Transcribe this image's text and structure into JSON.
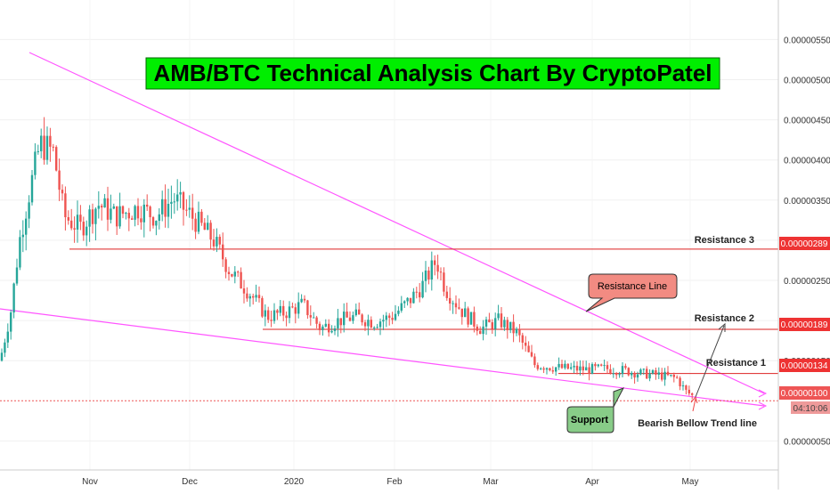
{
  "chart_data": {
    "type": "candlestick",
    "title": "AMB/BTC Technical Analysis Chart By CryptoPatel",
    "colors": {
      "bull": "#26a69a",
      "bear": "#ef5350",
      "trendline": "#ff55ff",
      "level": "#dd2222",
      "title_bg": "#00ee00",
      "callout_red": "#f28b82",
      "callout_green": "#88cc88"
    },
    "ylim": [
      2e-08,
      6e-07
    ],
    "y_ticks": [
      "0.00000050",
      "0.00000150",
      "0.00000200",
      "0.00000250",
      "0.00000300",
      "0.00000350",
      "0.00000400",
      "0.00000450",
      "0.00000500",
      "0.00000550"
    ],
    "x_ticks": [
      "Nov",
      "Dec",
      "2020",
      "Feb",
      "Mar",
      "Apr",
      "May"
    ],
    "levels": [
      {
        "name": "Resistance 3",
        "value": 2.89e-06,
        "label": "0.00000289"
      },
      {
        "name": "Resistance 2",
        "value": 1.89e-06,
        "label": "0.00000189"
      },
      {
        "name": "Resistance 1",
        "value": 1.34e-06,
        "label": "0.00000134"
      }
    ],
    "current_price": {
      "label": "0.00000100",
      "value": 1e-06,
      "countdown": "04:10:06"
    },
    "annotations": {
      "resistance_line": "Resistance Line",
      "support": "Support",
      "bearish": "Bearish Bellow Trend line"
    },
    "candles": [
      [
        2e-06,
        2e-06,
        1e-06,
        2e-06
      ],
      [
        2e-06,
        2e-06,
        2e-06,
        2e-06
      ],
      [
        2e-06,
        3e-06,
        2e-06,
        3e-06
      ],
      [
        3e-06,
        3e-06,
        3e-06,
        3e-06
      ],
      [
        3e-06,
        4e-06,
        2e-06,
        4e-06
      ],
      [
        4e-06,
        4e-06,
        3e-06,
        3e-06
      ],
      [
        3e-06,
        4e-06,
        3e-06,
        4e-06
      ],
      [
        4e-06,
        5e-06,
        4e-06,
        4e-06
      ],
      [
        4e-06,
        5e-06,
        4e-06,
        4e-06
      ],
      [
        4e-06,
        4e-06,
        4e-06,
        4e-06
      ],
      [
        4e-06,
        5e-06,
        4e-06,
        4e-06
      ],
      [
        4e-06,
        5e-06,
        4e-06,
        4e-06
      ],
      [
        4e-06,
        4e-06,
        4e-06,
        4e-06
      ],
      [
        4e-06,
        4e-06,
        3e-06,
        3e-06
      ],
      [
        3e-06,
        4e-06,
        3e-06,
        3e-06
      ],
      [
        3e-06,
        3e-06,
        3e-06,
        3e-06
      ],
      [
        3e-06,
        3e-06,
        3e-06,
        3e-06
      ],
      [
        3e-06,
        4e-06,
        3e-06,
        3e-06
      ],
      [
        3e-06,
        4e-06,
        3e-06,
        3e-06
      ],
      [
        3e-06,
        3e-06,
        3e-06,
        3e-06
      ],
      [
        3e-06,
        3e-06,
        3e-06,
        3e-06
      ],
      [
        3e-06,
        3e-06,
        3e-06,
        3e-06
      ],
      [
        3e-06,
        4e-06,
        3e-06,
        3e-06
      ],
      [
        3e-06,
        3e-06,
        3e-06,
        3e-06
      ],
      [
        3e-06,
        3e-06,
        3e-06,
        3e-06
      ],
      [
        3e-06,
        3e-06,
        3e-06,
        3e-06
      ],
      [
        3e-06,
        3e-06,
        3e-06,
        3e-06
      ],
      [
        3e-06,
        3e-06,
        3e-06,
        3e-06
      ],
      [
        3e-06,
        3e-06,
        3e-06,
        3e-06
      ],
      [
        3e-06,
        3e-06,
        3e-06,
        3e-06
      ],
      [
        3e-06,
        3e-06,
        3e-06,
        3e-06
      ],
      [
        3e-06,
        3e-06,
        3e-06,
        3e-06
      ],
      [
        3e-06,
        3e-06,
        3e-06,
        3e-06
      ],
      [
        3e-06,
        3e-06,
        3e-06,
        3e-06
      ],
      [
        3e-06,
        3e-06,
        3e-06,
        3e-06
      ],
      [
        3e-06,
        3e-06,
        3e-06,
        3e-06
      ],
      [
        3e-06,
        3e-06,
        3e-06,
        3e-06
      ],
      [
        3e-06,
        3e-06,
        3e-06,
        3e-06
      ],
      [
        3e-06,
        3e-06,
        3e-06,
        3e-06
      ],
      [
        3e-06,
        3e-06,
        3e-06,
        3e-06
      ],
      [
        3e-06,
        3e-06,
        3e-06,
        3e-06
      ],
      [
        3e-06,
        3e-06,
        3e-06,
        3e-06
      ],
      [
        3e-06,
        3e-06,
        2e-06,
        2e-06
      ],
      [
        2e-06,
        3e-06,
        2e-06,
        2e-06
      ],
      [
        2e-06,
        3e-06,
        2e-06,
        2e-06
      ],
      [
        2e-06,
        2e-06,
        2e-06,
        2e-06
      ],
      [
        2e-06,
        2e-06,
        2e-06,
        2e-06
      ],
      [
        2e-06,
        2e-06,
        2e-06,
        2e-06
      ],
      [
        2e-06,
        2e-06,
        2e-06,
        2e-06
      ],
      [
        2e-06,
        2e-06,
        2e-06,
        2e-06
      ],
      [
        2e-06,
        2e-06,
        2e-06,
        2e-06
      ],
      [
        2e-06,
        2e-06,
        2e-06,
        2e-06
      ],
      [
        2e-06,
        2e-06,
        2e-06,
        2e-06
      ],
      [
        2e-06,
        2e-06,
        2e-06,
        2e-06
      ],
      [
        2e-06,
        2e-06,
        2e-06,
        2e-06
      ],
      [
        2e-06,
        2e-06,
        2e-06,
        2e-06
      ],
      [
        2e-06,
        2e-06,
        2e-06,
        2e-06
      ],
      [
        2e-06,
        2e-06,
        2e-06,
        2e-06
      ],
      [
        2e-06,
        2e-06,
        2e-06,
        2e-06
      ],
      [
        2e-06,
        2e-06,
        2e-06,
        2e-06
      ],
      [
        2e-06,
        2e-06,
        2e-06,
        2e-06
      ],
      [
        2e-06,
        2e-06,
        2e-06,
        2e-06
      ],
      [
        2e-06,
        2e-06,
        2e-06,
        2e-06
      ],
      [
        2e-06,
        2e-06,
        2e-06,
        2e-06
      ],
      [
        2e-06,
        2e-06,
        2e-06,
        2e-06
      ],
      [
        2e-06,
        2e-06,
        2e-06,
        2e-06
      ],
      [
        2e-06,
        2e-06,
        2e-06,
        2e-06
      ],
      [
        2e-06,
        2e-06,
        2e-06,
        2e-06
      ],
      [
        2e-06,
        2e-06,
        2e-06,
        2e-06
      ],
      [
        2e-06,
        2e-06,
        2e-06,
        2e-06
      ],
      [
        2e-06,
        2e-06,
        2e-06,
        2e-06
      ],
      [
        2e-06,
        2e-06,
        2e-06,
        2e-06
      ],
      [
        2e-06,
        2e-06,
        2e-06,
        2e-06
      ],
      [
        2e-06,
        2e-06,
        2e-06,
        2e-06
      ],
      [
        2e-06,
        2e-06,
        2e-06,
        2e-06
      ],
      [
        2e-06,
        2e-06,
        2e-06,
        2e-06
      ],
      [
        2e-06,
        2e-06,
        2e-06,
        2e-06
      ],
      [
        2e-06,
        2e-06,
        2e-06,
        2e-06
      ],
      [
        2e-06,
        2e-06,
        2e-06,
        2e-06
      ],
      [
        2e-06,
        2e-06,
        2e-06,
        2e-06
      ],
      [
        2e-06,
        2e-06,
        2e-06,
        2e-06
      ],
      [
        2e-06,
        2e-06,
        2e-06,
        2e-06
      ],
      [
        2e-06,
        2e-06,
        2e-06,
        2e-06
      ],
      [
        2e-06,
        2e-06,
        2e-06,
        2e-06
      ],
      [
        2e-06,
        2e-06,
        2e-06,
        2e-06
      ],
      [
        2e-06,
        2e-06,
        2e-06,
        2e-06
      ],
      [
        2e-06,
        2e-06,
        2e-06,
        2e-06
      ],
      [
        2e-06,
        2e-06,
        2e-06,
        2e-06
      ],
      [
        2e-06,
        2e-06,
        1e-06,
        1e-06
      ],
      [
        1e-06,
        2e-06,
        1e-06,
        1e-06
      ],
      [
        1e-06,
        1e-06,
        1e-06,
        1e-06
      ],
      [
        1e-06,
        1e-06,
        1e-06,
        1e-06
      ],
      [
        1e-06,
        1e-06,
        1e-06,
        1e-06
      ],
      [
        1e-06,
        1e-06,
        1e-06,
        1e-06
      ],
      [
        1e-06,
        1e-06,
        1e-06,
        1e-06
      ],
      [
        1e-06,
        1e-06,
        1e-06,
        1e-06
      ],
      [
        1e-06,
        1e-06,
        1e-06,
        1e-06
      ],
      [
        1e-06,
        1e-06,
        1e-06,
        1e-06
      ],
      [
        1e-06,
        1e-06,
        1e-06,
        1e-06
      ],
      [
        1e-06,
        1e-06,
        1e-06,
        1e-06
      ],
      [
        1e-06,
        1e-06,
        1e-06,
        1e-06
      ]
    ]
  }
}
